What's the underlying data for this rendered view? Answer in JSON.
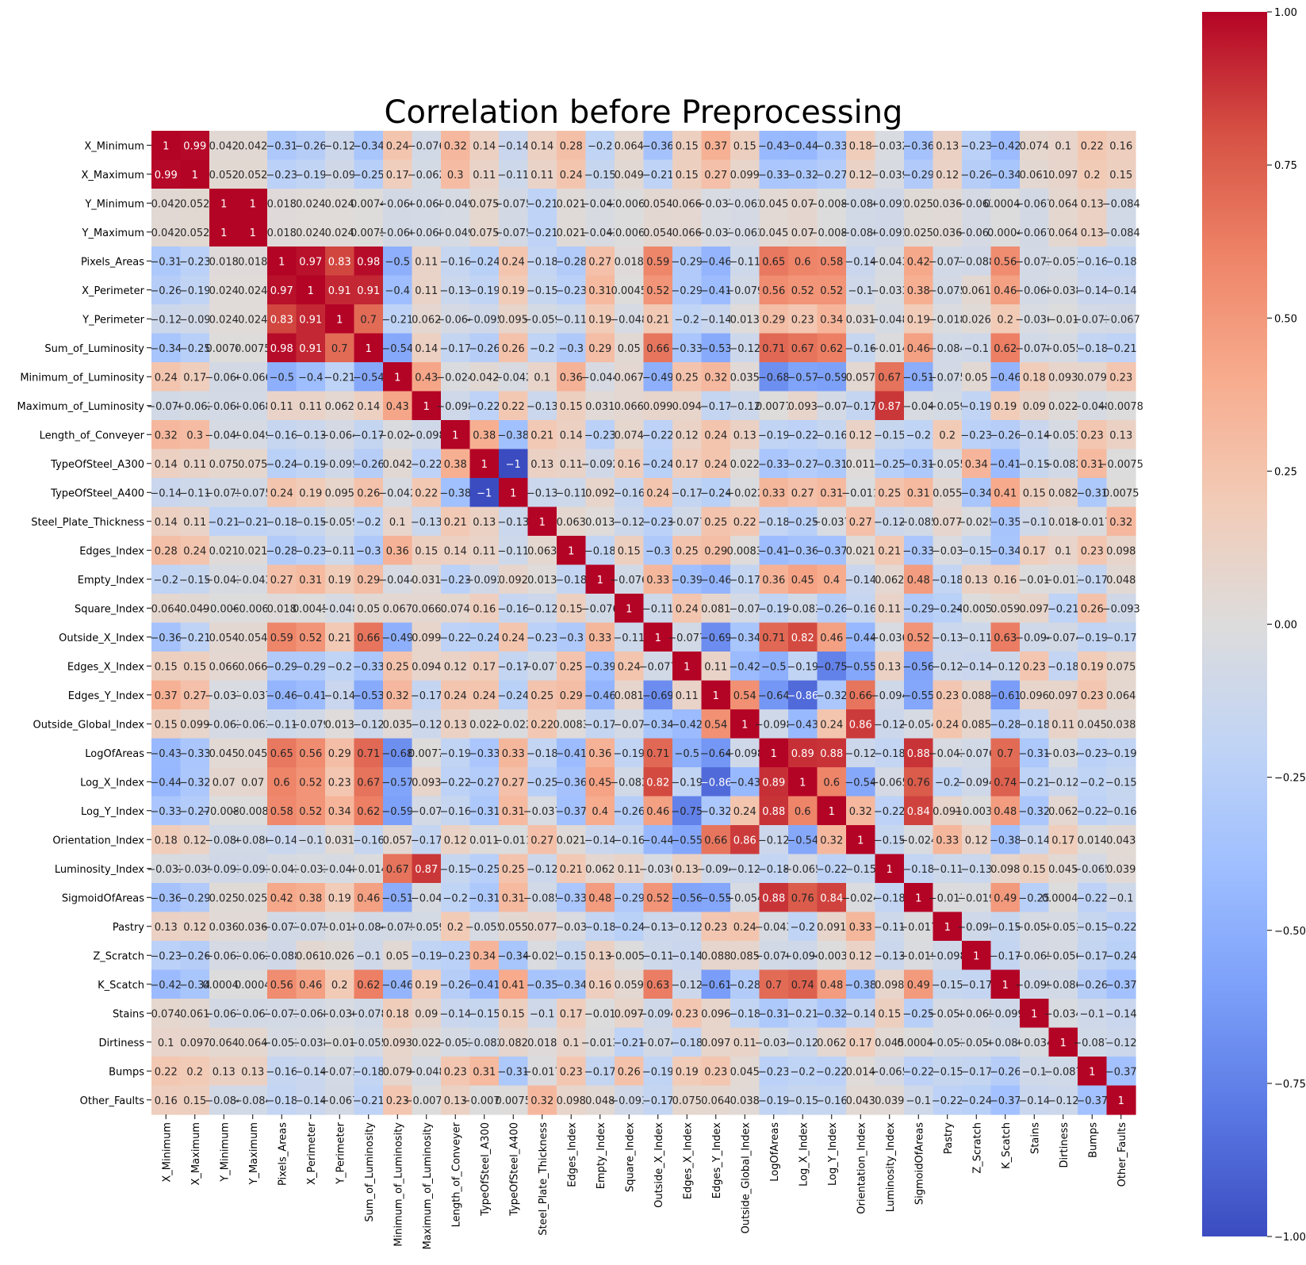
{
  "chart_data": {
    "type": "heatmap",
    "title": "Correlation before Preprocessing",
    "labels": [
      "X_Minimum",
      "X_Maximum",
      "Y_Minimum",
      "Y_Maximum",
      "Pixels_Areas",
      "X_Perimeter",
      "Y_Perimeter",
      "Sum_of_Luminosity",
      "Minimum_of_Luminosity",
      "Maximum_of_Luminosity",
      "Length_of_Conveyer",
      "TypeOfSteel_A300",
      "TypeOfSteel_A400",
      "Steel_Plate_Thickness",
      "Edges_Index",
      "Empty_Index",
      "Square_Index",
      "Outside_X_Index",
      "Edges_X_Index",
      "Edges_Y_Index",
      "Outside_Global_Index",
      "LogOfAreas",
      "Log_X_Index",
      "Log_Y_Index",
      "Orientation_Index",
      "Luminosity_Index",
      "SigmoidOfAreas",
      "Pastry",
      "Z_Scratch",
      "K_Scatch",
      "Stains",
      "Dirtiness",
      "Bumps",
      "Other_Faults"
    ],
    "values": [
      [
        1,
        0.99,
        0.042,
        0.042,
        -0.31,
        -0.26,
        -0.12,
        -0.34,
        0.24,
        -0.076,
        0.32,
        0.14,
        -0.14,
        0.14,
        0.28,
        -0.2,
        0.064,
        -0.36,
        0.15,
        0.37,
        0.15,
        -0.43,
        -0.44,
        -0.33,
        0.18,
        -0.032,
        -0.36,
        0.13,
        -0.23,
        -0.42,
        0.074,
        0.1,
        0.22,
        0.16
      ],
      [
        0.99,
        1,
        0.052,
        0.052,
        -0.23,
        -0.19,
        -0.09,
        -0.25,
        0.17,
        -0.062,
        0.3,
        0.11,
        -0.11,
        0.11,
        0.24,
        -0.15,
        0.049,
        -0.21,
        0.15,
        0.27,
        0.099,
        -0.33,
        -0.32,
        -0.27,
        0.12,
        -0.039,
        -0.29,
        0.12,
        -0.26,
        -0.34,
        0.061,
        0.097,
        0.2,
        0.15
      ],
      [
        0.042,
        0.052,
        1,
        1,
        0.018,
        0.024,
        0.024,
        0.0074,
        -0.066,
        -0.068,
        -0.049,
        0.075,
        -0.075,
        -0.21,
        0.021,
        -0.043,
        -0.0061,
        0.054,
        0.066,
        -0.037,
        -0.063,
        0.045,
        0.07,
        -0.0084,
        -0.086,
        -0.091,
        0.025,
        0.036,
        -0.063,
        0.00042,
        -0.067,
        0.064,
        0.13,
        -0.084
      ],
      [
        0.042,
        0.052,
        1,
        1,
        0.018,
        0.024,
        0.024,
        0.0075,
        -0.066,
        -0.068,
        -0.049,
        0.075,
        -0.075,
        -0.21,
        0.021,
        -0.043,
        -0.0062,
        0.054,
        0.066,
        -0.037,
        -0.063,
        0.045,
        0.07,
        -0.0084,
        -0.086,
        -0.091,
        0.025,
        0.036,
        -0.063,
        0.0004,
        -0.067,
        0.064,
        0.13,
        -0.084
      ],
      [
        -0.31,
        -0.23,
        0.018,
        0.018,
        1,
        0.97,
        0.83,
        0.98,
        -0.5,
        0.11,
        -0.16,
        -0.24,
        0.24,
        -0.18,
        -0.28,
        0.27,
        0.018,
        0.59,
        -0.29,
        -0.46,
        -0.11,
        0.65,
        0.6,
        0.58,
        -0.14,
        -0.043,
        0.42,
        -0.077,
        -0.088,
        0.56,
        -0.071,
        -0.051,
        -0.16,
        -0.18
      ],
      [
        -0.26,
        -0.19,
        0.024,
        0.024,
        0.97,
        1,
        0.91,
        0.91,
        -0.4,
        0.11,
        -0.13,
        -0.19,
        0.19,
        -0.15,
        -0.23,
        0.31,
        0.0045,
        0.52,
        -0.29,
        -0.41,
        -0.079,
        0.56,
        0.52,
        0.52,
        -0.1,
        -0.033,
        0.38,
        -0.075,
        0.061,
        0.46,
        -0.068,
        -0.038,
        -0.14,
        -0.14
      ],
      [
        -0.12,
        -0.09,
        0.024,
        0.024,
        0.83,
        0.91,
        1,
        0.7,
        -0.21,
        0.062,
        -0.064,
        -0.095,
        0.095,
        -0.059,
        -0.11,
        0.19,
        -0.048,
        0.21,
        -0.2,
        -0.14,
        0.013,
        0.29,
        0.23,
        0.34,
        0.031,
        -0.048,
        0.19,
        -0.018,
        0.026,
        0.2,
        -0.036,
        -0.01,
        -0.071,
        -0.067
      ],
      [
        -0.34,
        -0.25,
        0.0074,
        0.0075,
        0.98,
        0.91,
        0.7,
        1,
        -0.54,
        0.14,
        -0.17,
        -0.26,
        0.26,
        -0.2,
        -0.3,
        0.29,
        0.05,
        0.66,
        -0.33,
        -0.53,
        -0.12,
        0.71,
        0.67,
        0.62,
        -0.16,
        -0.014,
        0.46,
        -0.084,
        -0.1,
        0.62,
        -0.078,
        -0.055,
        -0.18,
        -0.21
      ],
      [
        0.24,
        0.17,
        -0.066,
        -0.066,
        -0.5,
        -0.4,
        -0.21,
        -0.54,
        1,
        0.43,
        -0.024,
        0.042,
        -0.042,
        0.1,
        0.36,
        -0.044,
        0.067,
        -0.49,
        0.25,
        0.32,
        0.035,
        -0.68,
        -0.57,
        -0.59,
        0.057,
        0.67,
        -0.51,
        -0.075,
        0.05,
        -0.46,
        0.18,
        0.093,
        0.079,
        0.23
      ],
      [
        -0.076,
        -0.062,
        -0.068,
        -0.068,
        0.11,
        0.11,
        0.062,
        0.14,
        0.43,
        1,
        -0.098,
        -0.22,
        0.22,
        -0.13,
        0.15,
        0.031,
        0.066,
        0.099,
        0.094,
        -0.17,
        -0.12,
        0.0077,
        0.093,
        -0.07,
        -0.17,
        0.87,
        -0.04,
        -0.059,
        -0.19,
        0.19,
        0.09,
        0.022,
        -0.048,
        -0.0078
      ],
      [
        0.32,
        0.3,
        -0.049,
        -0.049,
        -0.16,
        -0.13,
        -0.064,
        -0.17,
        -0.024,
        -0.098,
        1,
        0.38,
        -0.38,
        0.21,
        0.14,
        -0.23,
        0.074,
        -0.22,
        0.12,
        0.24,
        0.13,
        -0.19,
        -0.22,
        -0.16,
        0.12,
        -0.15,
        -0.2,
        0.2,
        -0.23,
        -0.26,
        -0.14,
        -0.053,
        0.23,
        0.13
      ],
      [
        0.14,
        0.11,
        0.075,
        0.075,
        -0.24,
        -0.19,
        -0.095,
        -0.26,
        0.042,
        -0.22,
        0.38,
        1,
        -1,
        0.13,
        0.11,
        -0.092,
        0.16,
        -0.24,
        0.17,
        0.24,
        0.022,
        -0.33,
        -0.27,
        -0.31,
        0.011,
        -0.25,
        -0.31,
        -0.055,
        0.34,
        -0.41,
        -0.15,
        -0.082,
        0.31,
        -0.0075
      ],
      [
        -0.14,
        -0.11,
        -0.075,
        -0.075,
        0.24,
        0.19,
        0.095,
        0.26,
        -0.042,
        0.22,
        -0.38,
        -1,
        1,
        -0.13,
        -0.11,
        0.092,
        -0.16,
        0.24,
        -0.17,
        -0.24,
        -0.022,
        0.33,
        0.27,
        0.31,
        -0.011,
        0.25,
        0.31,
        0.055,
        -0.34,
        0.41,
        0.15,
        0.082,
        -0.31,
        0.0075
      ],
      [
        0.14,
        0.11,
        -0.21,
        -0.21,
        -0.18,
        -0.15,
        -0.059,
        -0.2,
        0.1,
        -0.13,
        0.21,
        0.13,
        -0.13,
        1,
        0.063,
        0.013,
        -0.12,
        -0.23,
        -0.077,
        0.25,
        0.22,
        -0.18,
        -0.25,
        -0.037,
        0.27,
        -0.12,
        -0.085,
        0.077,
        -0.025,
        -0.35,
        -0.1,
        0.018,
        -0.017,
        0.32
      ],
      [
        0.28,
        0.24,
        0.021,
        0.021,
        -0.28,
        -0.23,
        -0.11,
        -0.3,
        0.36,
        0.15,
        0.14,
        0.11,
        -0.11,
        0.063,
        1,
        -0.18,
        0.15,
        -0.3,
        0.25,
        0.29,
        0.0083,
        -0.41,
        -0.36,
        -0.37,
        0.021,
        0.21,
        -0.33,
        -0.03,
        -0.15,
        -0.34,
        0.17,
        0.1,
        0.23,
        0.098
      ],
      [
        -0.2,
        -0.15,
        -0.043,
        -0.043,
        0.27,
        0.31,
        0.19,
        0.29,
        -0.044,
        0.031,
        -0.23,
        -0.092,
        0.092,
        0.013,
        -0.18,
        1,
        -0.076,
        0.33,
        -0.39,
        -0.46,
        -0.17,
        0.36,
        0.45,
        0.4,
        -0.14,
        0.062,
        0.48,
        -0.18,
        0.13,
        0.16,
        -0.01,
        -0.013,
        -0.17,
        0.048
      ],
      [
        0.064,
        0.049,
        -0.0061,
        -0.0062,
        0.018,
        0.0045,
        -0.048,
        0.05,
        0.067,
        0.066,
        0.074,
        0.16,
        -0.16,
        -0.12,
        0.15,
        -0.076,
        1,
        -0.11,
        0.24,
        0.081,
        -0.07,
        -0.19,
        -0.083,
        -0.26,
        -0.16,
        0.11,
        -0.29,
        -0.24,
        -0.0055,
        0.059,
        0.097,
        -0.21,
        0.26,
        -0.093
      ],
      [
        -0.36,
        -0.21,
        0.054,
        0.054,
        0.59,
        0.52,
        0.21,
        0.66,
        -0.49,
        0.099,
        -0.22,
        -0.24,
        0.24,
        -0.23,
        -0.3,
        0.33,
        -0.11,
        1,
        -0.077,
        -0.69,
        -0.34,
        0.71,
        0.82,
        0.46,
        -0.44,
        -0.036,
        0.52,
        -0.13,
        -0.11,
        0.63,
        -0.094,
        -0.074,
        -0.19,
        -0.17
      ],
      [
        0.15,
        0.15,
        0.066,
        0.066,
        -0.29,
        -0.29,
        -0.2,
        -0.33,
        0.25,
        0.094,
        0.12,
        0.17,
        -0.17,
        -0.077,
        0.25,
        -0.39,
        0.24,
        -0.077,
        1,
        0.11,
        -0.42,
        -0.5,
        -0.19,
        -0.75,
        -0.55,
        0.13,
        -0.56,
        -0.12,
        -0.14,
        -0.12,
        0.23,
        -0.18,
        0.19,
        0.075
      ],
      [
        0.37,
        0.27,
        -0.037,
        -0.037,
        -0.46,
        -0.41,
        -0.14,
        -0.53,
        0.32,
        -0.17,
        0.24,
        0.24,
        -0.24,
        0.25,
        0.29,
        -0.46,
        0.081,
        -0.69,
        0.11,
        1,
        0.54,
        -0.64,
        -0.86,
        -0.32,
        0.66,
        -0.094,
        -0.55,
        0.23,
        0.088,
        -0.61,
        0.096,
        0.097,
        0.23,
        0.064
      ],
      [
        0.15,
        0.099,
        -0.063,
        -0.063,
        -0.11,
        -0.079,
        0.013,
        -0.12,
        0.035,
        -0.12,
        0.13,
        0.022,
        -0.022,
        0.22,
        0.0083,
        -0.17,
        -0.07,
        -0.34,
        -0.42,
        0.54,
        1,
        -0.098,
        -0.43,
        0.24,
        0.86,
        -0.12,
        -0.054,
        0.24,
        0.085,
        -0.28,
        -0.18,
        0.11,
        0.045,
        0.038
      ],
      [
        -0.43,
        -0.33,
        0.045,
        0.045,
        0.65,
        0.56,
        0.29,
        0.71,
        -0.68,
        0.0077,
        -0.19,
        -0.33,
        0.33,
        -0.18,
        -0.41,
        0.36,
        -0.19,
        0.71,
        -0.5,
        -0.64,
        -0.098,
        1,
        0.89,
        0.88,
        -0.12,
        -0.18,
        0.88,
        -0.043,
        -0.076,
        0.7,
        -0.31,
        -0.034,
        -0.23,
        -0.19
      ],
      [
        -0.44,
        -0.32,
        0.07,
        0.07,
        0.6,
        0.52,
        0.23,
        0.67,
        -0.57,
        0.093,
        -0.22,
        -0.27,
        0.27,
        -0.25,
        -0.36,
        0.45,
        -0.083,
        0.82,
        -0.19,
        -0.86,
        -0.43,
        0.89,
        1,
        0.6,
        -0.54,
        -0.065,
        0.76,
        -0.2,
        -0.094,
        0.74,
        -0.21,
        -0.12,
        -0.2,
        -0.15
      ],
      [
        -0.33,
        -0.27,
        -0.0084,
        -0.0084,
        0.58,
        0.52,
        0.34,
        0.62,
        -0.59,
        -0.07,
        -0.16,
        -0.31,
        0.31,
        -0.037,
        -0.37,
        0.4,
        -0.26,
        0.46,
        -0.75,
        -0.32,
        0.24,
        0.88,
        0.6,
        1,
        0.32,
        -0.22,
        0.84,
        0.091,
        -0.0032,
        0.48,
        -0.32,
        0.062,
        -0.22,
        -0.16
      ],
      [
        0.18,
        0.12,
        -0.086,
        -0.086,
        -0.14,
        -0.1,
        0.031,
        -0.16,
        0.057,
        -0.17,
        0.12,
        0.011,
        -0.011,
        0.27,
        0.021,
        -0.14,
        -0.16,
        -0.44,
        -0.55,
        0.66,
        0.86,
        -0.12,
        -0.54,
        0.32,
        1,
        -0.15,
        -0.024,
        0.33,
        0.12,
        -0.38,
        -0.14,
        0.17,
        0.014,
        0.043
      ],
      [
        -0.032,
        -0.039,
        -0.091,
        -0.091,
        -0.043,
        -0.033,
        -0.048,
        -0.014,
        0.67,
        0.87,
        -0.15,
        -0.25,
        0.25,
        -0.12,
        0.21,
        0.062,
        0.11,
        -0.036,
        0.13,
        -0.094,
        -0.12,
        -0.18,
        -0.065,
        -0.22,
        -0.15,
        1,
        -0.18,
        -0.11,
        -0.13,
        0.098,
        0.15,
        0.045,
        -0.065,
        0.039
      ],
      [
        -0.36,
        -0.29,
        0.025,
        0.025,
        0.42,
        0.38,
        0.19,
        0.46,
        -0.51,
        -0.04,
        -0.2,
        -0.31,
        0.31,
        -0.085,
        -0.33,
        0.48,
        -0.29,
        0.52,
        -0.56,
        -0.55,
        -0.054,
        0.88,
        0.76,
        0.84,
        -0.024,
        -0.18,
        1,
        -0.017,
        -0.019,
        0.49,
        -0.25,
        0.00046,
        -0.22,
        -0.1
      ],
      [
        0.13,
        0.12,
        0.036,
        0.036,
        -0.077,
        -0.075,
        -0.018,
        -0.084,
        -0.075,
        -0.059,
        0.2,
        -0.055,
        0.055,
        0.077,
        -0.03,
        -0.18,
        -0.24,
        -0.13,
        -0.12,
        0.23,
        0.24,
        -0.043,
        -0.2,
        0.091,
        0.33,
        -0.11,
        -0.017,
        1,
        -0.098,
        -0.15,
        -0.058,
        -0.051,
        -0.15,
        -0.22
      ],
      [
        -0.23,
        -0.26,
        -0.063,
        -0.063,
        -0.088,
        0.061,
        0.026,
        -0.1,
        0.05,
        -0.19,
        -0.23,
        0.34,
        -0.34,
        -0.025,
        -0.15,
        0.13,
        -0.0055,
        -0.11,
        -0.14,
        0.088,
        0.085,
        -0.076,
        -0.094,
        -0.0032,
        0.12,
        -0.13,
        -0.019,
        -0.098,
        1,
        -0.17,
        -0.065,
        -0.056,
        -0.17,
        -0.24
      ],
      [
        -0.42,
        -0.34,
        0.00042,
        0.0004,
        0.56,
        0.46,
        0.2,
        0.62,
        -0.46,
        0.19,
        -0.26,
        -0.41,
        0.41,
        -0.35,
        -0.34,
        0.16,
        0.059,
        0.63,
        -0.12,
        -0.61,
        -0.28,
        0.7,
        0.74,
        0.48,
        -0.38,
        0.098,
        0.49,
        -0.15,
        -0.17,
        1,
        -0.099,
        -0.086,
        -0.26,
        -0.37
      ],
      [
        0.074,
        0.061,
        -0.067,
        -0.067,
        -0.071,
        -0.068,
        -0.036,
        -0.078,
        0.18,
        0.09,
        -0.14,
        -0.15,
        0.15,
        -0.1,
        0.17,
        -0.01,
        0.097,
        -0.094,
        0.23,
        0.096,
        -0.18,
        -0.31,
        -0.21,
        -0.32,
        -0.14,
        0.15,
        -0.25,
        -0.058,
        -0.065,
        -0.099,
        1,
        -0.034,
        -0.1,
        -0.14
      ],
      [
        0.1,
        0.097,
        0.064,
        0.064,
        -0.051,
        -0.038,
        -0.01,
        -0.055,
        0.093,
        0.022,
        -0.053,
        -0.082,
        0.082,
        0.018,
        0.1,
        -0.013,
        -0.21,
        -0.074,
        -0.18,
        0.097,
        0.11,
        -0.034,
        -0.12,
        0.062,
        0.17,
        0.045,
        0.00046,
        -0.051,
        -0.056,
        -0.086,
        -0.034,
        1,
        -0.087,
        -0.12
      ],
      [
        0.22,
        0.2,
        0.13,
        0.13,
        -0.16,
        -0.14,
        -0.071,
        -0.18,
        0.079,
        -0.048,
        0.23,
        0.31,
        -0.31,
        -0.017,
        0.23,
        -0.17,
        0.26,
        -0.19,
        0.19,
        0.23,
        0.045,
        -0.23,
        -0.2,
        -0.22,
        0.014,
        -0.065,
        -0.22,
        -0.15,
        -0.17,
        -0.26,
        -0.1,
        -0.087,
        1,
        -0.37
      ],
      [
        0.16,
        0.15,
        -0.084,
        -0.084,
        -0.18,
        -0.14,
        -0.067,
        -0.21,
        0.23,
        -0.0078,
        0.13,
        -0.0075,
        0.0075,
        0.32,
        0.098,
        0.048,
        -0.093,
        -0.17,
        0.075,
        0.064,
        0.038,
        -0.19,
        -0.15,
        -0.16,
        0.043,
        0.039,
        -0.1,
        -0.22,
        -0.24,
        -0.37,
        -0.14,
        -0.12,
        -0.37,
        1
      ]
    ],
    "colorbar": {
      "range": [
        -1,
        1
      ],
      "ticks": [
        1.0,
        0.75,
        0.5,
        0.25,
        0.0,
        -0.25,
        -0.5,
        -0.75,
        -1.0
      ],
      "tick_labels": [
        "1.00",
        "0.75",
        "0.50",
        "0.25",
        "0.00",
        "−0.25",
        "−0.50",
        "−0.75",
        "−1.00"
      ],
      "colormap": "coolwarm",
      "colormap_stops": [
        "#3b4cc0",
        "#5977e3",
        "#7b9ff9",
        "#9ebeff",
        "#c0d4f5",
        "#dddcdc",
        "#f2cbb7",
        "#f7ac8e",
        "#ee8468",
        "#d65244",
        "#b40426"
      ]
    },
    "annot": true,
    "xlabel": "",
    "ylabel": ""
  }
}
